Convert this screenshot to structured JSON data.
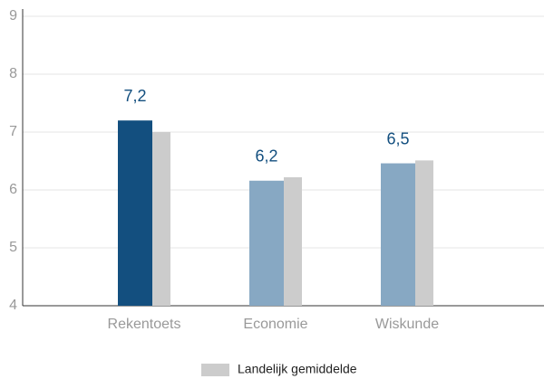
{
  "chart_data": {
    "type": "bar",
    "categories": [
      "Rekentoets",
      "Economie",
      "Wiskunde"
    ],
    "series": [
      {
        "colors": [
          "#134f7f",
          "#87a8c3",
          "#87a8c3"
        ],
        "values": [
          7.2,
          6.16,
          6.46
        ],
        "value_labels": [
          "7,2",
          "6,2",
          "6,5"
        ]
      },
      {
        "name": "Landelijk gemiddelde",
        "color": "#cccccc",
        "values": [
          7.0,
          6.22,
          6.51
        ]
      }
    ],
    "ylim": [
      4,
      9
    ],
    "yticks": [
      4,
      5,
      6,
      7,
      8,
      9
    ],
    "grid": true,
    "legend": "bottom"
  }
}
